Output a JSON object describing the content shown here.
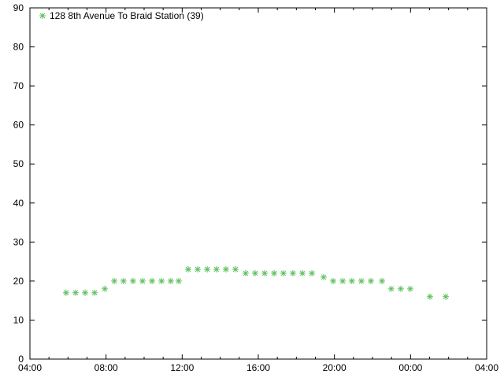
{
  "chart_data": {
    "type": "scatter",
    "title": "",
    "xlabel": "",
    "ylabel": "",
    "xlim": [
      "04:00",
      "04:00 (+1 day)"
    ],
    "ylim": [
      0,
      90
    ],
    "x_ticks": [
      "04:00",
      "08:00",
      "12:00",
      "16:00",
      "20:00",
      "00:00",
      "04:00"
    ],
    "y_ticks": [
      "0",
      "10",
      "20",
      "30",
      "40",
      "50",
      "60",
      "70",
      "80",
      "90"
    ],
    "grid": false,
    "legend_placement": "top-left",
    "marker": "asterisk",
    "series": [
      {
        "name": "128 8th Avenue To Braid Station (39)",
        "color": "#5cc05c",
        "x": [
          "05:54",
          "06:24",
          "06:54",
          "07:24",
          "07:56",
          "08:26",
          "08:55",
          "09:25",
          "09:55",
          "10:25",
          "10:55",
          "11:24",
          "11:49",
          "12:19",
          "12:49",
          "13:19",
          "13:48",
          "14:18",
          "14:48",
          "15:20",
          "15:50",
          "16:20",
          "16:50",
          "17:19",
          "17:49",
          "18:19",
          "18:49",
          "19:26",
          "19:56",
          "20:26",
          "20:55",
          "21:25",
          "21:55",
          "22:30",
          "22:59",
          "23:29",
          "23:59",
          "01:01",
          "01:51"
        ],
        "y": [
          17,
          17,
          17,
          17,
          18,
          20,
          20,
          20,
          20,
          20,
          20,
          20,
          20,
          23,
          23,
          23,
          23,
          23,
          23,
          22,
          22,
          22,
          22,
          22,
          22,
          22,
          22,
          21,
          20,
          20,
          20,
          20,
          20,
          20,
          18,
          18,
          18,
          16,
          16
        ]
      }
    ]
  }
}
